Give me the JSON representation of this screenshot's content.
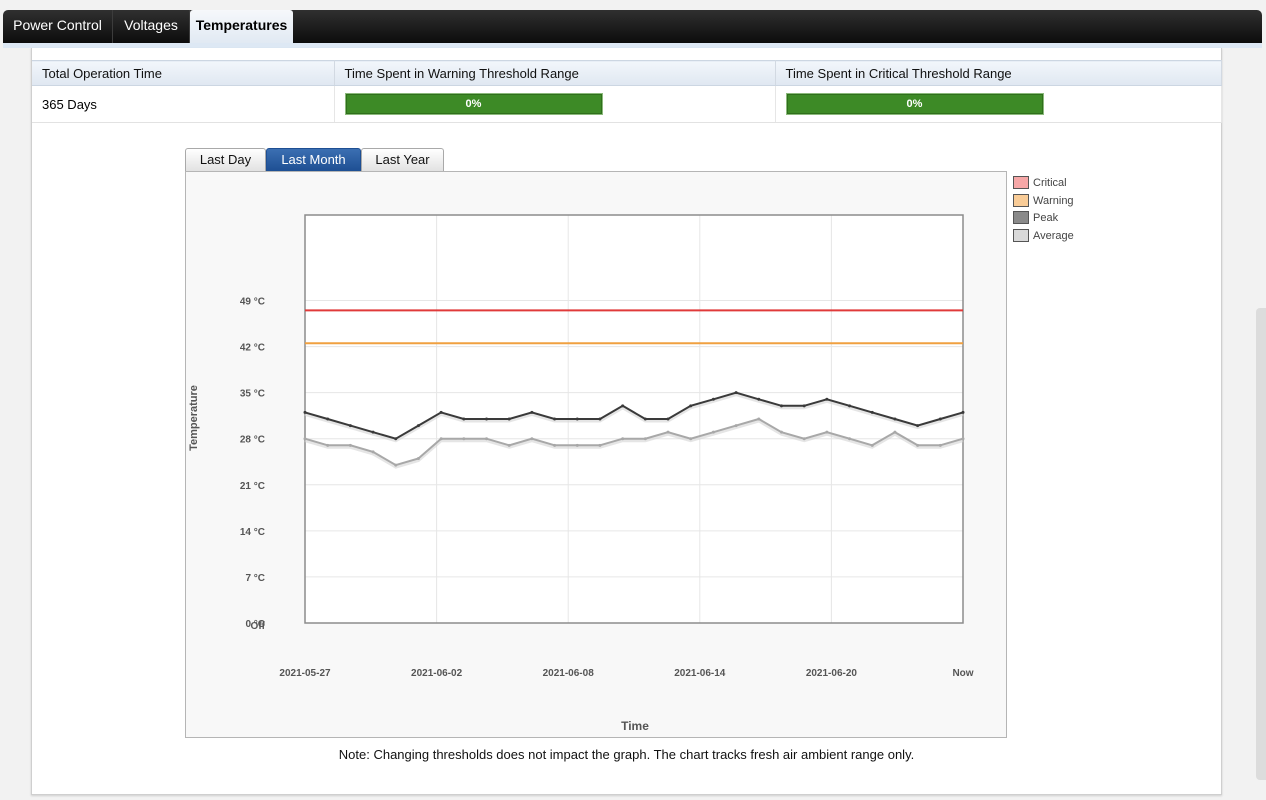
{
  "tabs": [
    {
      "label": "Power Control",
      "active": false
    },
    {
      "label": "Voltages",
      "active": false
    },
    {
      "label": "Temperatures",
      "active": true
    }
  ],
  "stats": {
    "headers": [
      "Total Operation Time",
      "Time Spent in Warning Threshold Range",
      "Time Spent in Critical Threshold Range"
    ],
    "operation_time": "365 Days",
    "warning_pct": "0%",
    "critical_pct": "0%",
    "warning_fraction": 0,
    "critical_fraction": 0,
    "bar_color": "#3d8a26"
  },
  "range_tabs": [
    {
      "label": "Last Day",
      "active": false
    },
    {
      "label": "Last Month",
      "active": true
    },
    {
      "label": "Last Year",
      "active": false
    }
  ],
  "legend": [
    {
      "label": "Critical",
      "color": "#f6a7a7"
    },
    {
      "label": "Warning",
      "color": "#f9cc97"
    },
    {
      "label": "Peak",
      "color": "#8a8a8a"
    },
    {
      "label": "Average",
      "color": "#d9d9d9"
    }
  ],
  "note": "Note: Changing thresholds does not impact the graph. The chart tracks fresh air ambient range only.",
  "chart_data": {
    "type": "line",
    "xlabel": "Time",
    "ylabel": "Temperature",
    "x_ticks": [
      "2021-05-27",
      "2021-06-02",
      "2021-06-08",
      "2021-06-14",
      "2021-06-20",
      "Now"
    ],
    "y_ticks": [
      "0 °C",
      "7 °C",
      "14 °C",
      "21 °C",
      "28 °C",
      "35 °C",
      "42 °C",
      "49 °C"
    ],
    "y_tick_values": [
      0,
      7,
      14,
      21,
      28,
      35,
      42,
      49
    ],
    "y_off_label": "Off",
    "ylim": [
      0,
      62
    ],
    "grid": true,
    "series": [
      {
        "name": "Critical",
        "color": "#e03a3a",
        "values": [
          47.5,
          47.5,
          47.5,
          47.5,
          47.5,
          47.5,
          47.5,
          47.5,
          47.5,
          47.5,
          47.5,
          47.5,
          47.5,
          47.5,
          47.5,
          47.5,
          47.5,
          47.5,
          47.5,
          47.5,
          47.5,
          47.5,
          47.5,
          47.5,
          47.5,
          47.5,
          47.5,
          47.5,
          47.5,
          47.5
        ]
      },
      {
        "name": "Warning",
        "color": "#f0a040",
        "values": [
          42.5,
          42.5,
          42.5,
          42.5,
          42.5,
          42.5,
          42.5,
          42.5,
          42.5,
          42.5,
          42.5,
          42.5,
          42.5,
          42.5,
          42.5,
          42.5,
          42.5,
          42.5,
          42.5,
          42.5,
          42.5,
          42.5,
          42.5,
          42.5,
          42.5,
          42.5,
          42.5,
          42.5,
          42.5,
          42.5
        ]
      },
      {
        "name": "Peak",
        "color": "#3a3a3a",
        "values": [
          32,
          31,
          30,
          29,
          28,
          30,
          32,
          31,
          31,
          31,
          32,
          31,
          31,
          31,
          33,
          31,
          31,
          33,
          34,
          35,
          34,
          33,
          33,
          34,
          33,
          32,
          31,
          30,
          31,
          32
        ]
      },
      {
        "name": "Average",
        "color": "#a8a8a8",
        "values": [
          28,
          27,
          27,
          26,
          24,
          25,
          28,
          28,
          28,
          27,
          28,
          27,
          27,
          27,
          28,
          28,
          29,
          28,
          29,
          30,
          31,
          29,
          28,
          29,
          28,
          27,
          29,
          27,
          27,
          28
        ]
      }
    ]
  }
}
